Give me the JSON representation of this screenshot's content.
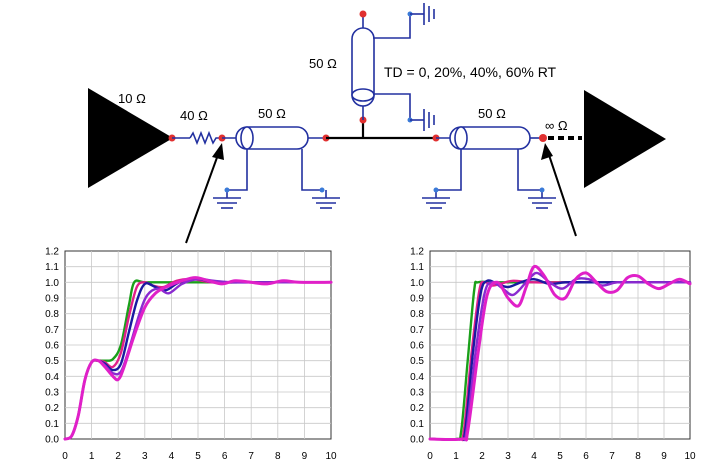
{
  "circuit": {
    "driver_label": "10 Ω",
    "series_resistor_label": "40 Ω",
    "tline1_label": "50 Ω",
    "stub_label": "50 Ω",
    "td_label": "TD = 0, 20%, 40%, 60% RT",
    "tline2_label": "50 Ω",
    "receiver_label": "∞ Ω"
  },
  "colors": {
    "series": [
      "#1aa01a",
      "#e0208a",
      "#1a1aa0",
      "#8a2ad0",
      "#e020c8"
    ],
    "node": "#e03030",
    "ground": "#3a7ad8",
    "wire": "#2230a0"
  },
  "chart_data": [
    {
      "type": "line",
      "title": "",
      "xlabel": "",
      "ylabel": "",
      "xlim": [
        0,
        10
      ],
      "ylim": [
        0,
        1.2
      ],
      "x_ticks": [
        "0",
        "1",
        "2",
        "3",
        "4",
        "5",
        "6",
        "7",
        "8",
        "9",
        "10"
      ],
      "y_ticks": [
        "0.0",
        "0.1",
        "0.2",
        "0.3",
        "0.4",
        "0.5",
        "0.6",
        "0.7",
        "0.8",
        "0.9",
        "1.0",
        "1.1",
        "1.2"
      ],
      "grid": true,
      "series": [
        {
          "points": [
            [
              0,
              0
            ],
            [
              0.25,
              0.02
            ],
            [
              0.5,
              0.15
            ],
            [
              0.75,
              0.38
            ],
            [
              1.0,
              0.49
            ],
            [
              1.25,
              0.5
            ],
            [
              1.5,
              0.5
            ],
            [
              1.8,
              0.51
            ],
            [
              2.1,
              0.6
            ],
            [
              2.4,
              0.85
            ],
            [
              2.6,
              1.0
            ],
            [
              3.0,
              1.0
            ],
            [
              4.0,
              1.0
            ],
            [
              5.0,
              1.0
            ],
            [
              6.0,
              1.0
            ],
            [
              7.0,
              1.0
            ],
            [
              8.0,
              1.0
            ],
            [
              9.0,
              1.0
            ],
            [
              10.0,
              1.0
            ]
          ]
        },
        {
          "points": [
            [
              0,
              0
            ],
            [
              0.25,
              0.02
            ],
            [
              0.5,
              0.15
            ],
            [
              0.75,
              0.38
            ],
            [
              1.0,
              0.49
            ],
            [
              1.25,
              0.5
            ],
            [
              1.5,
              0.49
            ],
            [
              1.8,
              0.46
            ],
            [
              2.1,
              0.55
            ],
            [
              2.4,
              0.78
            ],
            [
              2.7,
              0.97
            ],
            [
              3.0,
              1.0
            ],
            [
              3.3,
              0.98
            ],
            [
              3.7,
              0.97
            ],
            [
              4.2,
              1.01
            ],
            [
              4.8,
              1.02
            ],
            [
              5.5,
              1.0
            ],
            [
              6.5,
              1.0
            ],
            [
              8.0,
              1.0
            ],
            [
              10.0,
              1.0
            ]
          ]
        },
        {
          "points": [
            [
              0,
              0
            ],
            [
              0.25,
              0.02
            ],
            [
              0.5,
              0.15
            ],
            [
              0.75,
              0.38
            ],
            [
              1.0,
              0.49
            ],
            [
              1.25,
              0.5
            ],
            [
              1.5,
              0.48
            ],
            [
              1.8,
              0.44
            ],
            [
              2.1,
              0.48
            ],
            [
              2.4,
              0.68
            ],
            [
              2.7,
              0.88
            ],
            [
              3.0,
              0.99
            ],
            [
              3.4,
              0.97
            ],
            [
              3.8,
              0.95
            ],
            [
              4.3,
              1.0
            ],
            [
              5.0,
              1.02
            ],
            [
              5.6,
              1.0
            ],
            [
              6.5,
              1.0
            ],
            [
              8.0,
              1.0
            ],
            [
              10.0,
              1.0
            ]
          ]
        },
        {
          "points": [
            [
              0,
              0
            ],
            [
              0.25,
              0.02
            ],
            [
              0.5,
              0.15
            ],
            [
              0.75,
              0.38
            ],
            [
              1.0,
              0.49
            ],
            [
              1.25,
              0.5
            ],
            [
              1.5,
              0.47
            ],
            [
              1.8,
              0.42
            ],
            [
              2.1,
              0.43
            ],
            [
              2.4,
              0.57
            ],
            [
              2.8,
              0.8
            ],
            [
              3.1,
              0.92
            ],
            [
              3.5,
              0.96
            ],
            [
              3.9,
              0.93
            ],
            [
              4.4,
              0.99
            ],
            [
              5.0,
              1.02
            ],
            [
              5.6,
              1.01
            ],
            [
              6.3,
              1.0
            ],
            [
              7.5,
              1.0
            ],
            [
              10.0,
              1.0
            ]
          ]
        },
        {
          "points": [
            [
              0,
              0
            ],
            [
              0.25,
              0.02
            ],
            [
              0.5,
              0.15
            ],
            [
              0.75,
              0.38
            ],
            [
              1.0,
              0.49
            ],
            [
              1.25,
              0.5
            ],
            [
              1.5,
              0.46
            ],
            [
              1.8,
              0.4
            ],
            [
              2.0,
              0.38
            ],
            [
              2.2,
              0.45
            ],
            [
              2.6,
              0.66
            ],
            [
              3.0,
              0.84
            ],
            [
              3.4,
              0.93
            ],
            [
              3.8,
              0.97
            ],
            [
              4.4,
              1.01
            ],
            [
              4.9,
              1.03
            ],
            [
              5.4,
              1.01
            ],
            [
              5.9,
              0.99
            ],
            [
              6.4,
              1.01
            ],
            [
              7.0,
              1.0
            ],
            [
              7.6,
              0.99
            ],
            [
              8.2,
              1.01
            ],
            [
              8.8,
              1.0
            ],
            [
              10.0,
              1.0
            ]
          ]
        }
      ]
    },
    {
      "type": "line",
      "title": "",
      "xlabel": "",
      "ylabel": "",
      "xlim": [
        0,
        10
      ],
      "ylim": [
        0,
        1.2
      ],
      "x_ticks": [
        "0",
        "1",
        "2",
        "3",
        "4",
        "5",
        "6",
        "7",
        "8",
        "9",
        "10"
      ],
      "y_ticks": [
        "0.0",
        "0.1",
        "0.2",
        "0.3",
        "0.4",
        "0.5",
        "0.6",
        "0.7",
        "0.8",
        "0.9",
        "1.0",
        "1.1",
        "1.2"
      ],
      "grid": true,
      "series": [
        {
          "points": [
            [
              0,
              0
            ],
            [
              1.0,
              0
            ],
            [
              1.2,
              0.05
            ],
            [
              1.45,
              0.5
            ],
            [
              1.7,
              0.95
            ],
            [
              1.85,
              1.0
            ],
            [
              2.5,
              1.0
            ],
            [
              4.0,
              1.0
            ],
            [
              6.0,
              1.0
            ],
            [
              8.0,
              1.0
            ],
            [
              10.0,
              1.0
            ]
          ]
        },
        {
          "points": [
            [
              0,
              0
            ],
            [
              1.1,
              0
            ],
            [
              1.3,
              0.05
            ],
            [
              1.6,
              0.55
            ],
            [
              1.9,
              0.95
            ],
            [
              2.1,
              1.0
            ],
            [
              2.4,
              0.98
            ],
            [
              2.7,
              0.99
            ],
            [
              3.2,
              1.01
            ],
            [
              4.0,
              1.0
            ],
            [
              6.0,
              1.0
            ],
            [
              10.0,
              1.0
            ]
          ]
        },
        {
          "points": [
            [
              0,
              0
            ],
            [
              1.15,
              0
            ],
            [
              1.35,
              0.05
            ],
            [
              1.65,
              0.55
            ],
            [
              1.95,
              0.93
            ],
            [
              2.2,
              1.01
            ],
            [
              2.6,
              0.99
            ],
            [
              3.0,
              0.97
            ],
            [
              3.5,
              1.0
            ],
            [
              4.0,
              1.02
            ],
            [
              4.6,
              0.99
            ],
            [
              5.2,
              1.0
            ],
            [
              6.0,
              1.0
            ],
            [
              7.0,
              1.0
            ],
            [
              10.0,
              1.0
            ]
          ]
        },
        {
          "points": [
            [
              0,
              0
            ],
            [
              1.2,
              0
            ],
            [
              1.4,
              0.05
            ],
            [
              1.75,
              0.55
            ],
            [
              2.1,
              0.93
            ],
            [
              2.4,
              1.0
            ],
            [
              2.8,
              0.96
            ],
            [
              3.2,
              0.92
            ],
            [
              3.7,
              1.0
            ],
            [
              4.1,
              1.06
            ],
            [
              4.6,
              1.0
            ],
            [
              5.1,
              0.96
            ],
            [
              5.6,
              1.02
            ],
            [
              6.1,
              1.02
            ],
            [
              6.6,
              0.98
            ],
            [
              7.2,
              1.0
            ],
            [
              8.0,
              1.0
            ],
            [
              10.0,
              1.0
            ]
          ]
        },
        {
          "points": [
            [
              0,
              0
            ],
            [
              1.25,
              0
            ],
            [
              1.45,
              0.05
            ],
            [
              1.85,
              0.55
            ],
            [
              2.2,
              0.92
            ],
            [
              2.6,
              1.0
            ],
            [
              3.0,
              0.9
            ],
            [
              3.4,
              0.85
            ],
            [
              3.7,
              0.97
            ],
            [
              4.0,
              1.1
            ],
            [
              4.4,
              1.04
            ],
            [
              4.8,
              0.92
            ],
            [
              5.2,
              0.9
            ],
            [
              5.6,
              1.02
            ],
            [
              6.0,
              1.06
            ],
            [
              6.4,
              1.0
            ],
            [
              6.8,
              0.94
            ],
            [
              7.2,
              0.95
            ],
            [
              7.6,
              1.03
            ],
            [
              8.0,
              1.04
            ],
            [
              8.4,
              0.99
            ],
            [
              8.8,
              0.96
            ],
            [
              9.2,
              0.99
            ],
            [
              9.6,
              1.02
            ],
            [
              10.0,
              0.99
            ]
          ]
        }
      ]
    }
  ]
}
